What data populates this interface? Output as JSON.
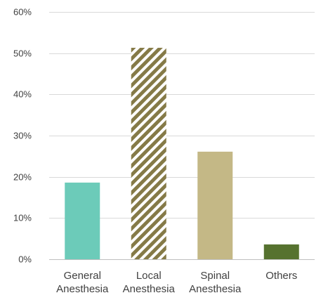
{
  "chart_data": {
    "type": "bar",
    "title": "",
    "xlabel": "",
    "ylabel": "",
    "categories": [
      [
        "General",
        "Anesthesia"
      ],
      [
        "Local",
        "Anesthesia"
      ],
      [
        "Spinal",
        "Anesthesia"
      ],
      [
        "Others"
      ]
    ],
    "values": [
      18.6,
      51.3,
      26.1,
      3.6
    ],
    "value_unit": "%",
    "ylim": [
      0,
      60
    ],
    "yticks": [
      "0%",
      "10%",
      "20%",
      "30%",
      "40%",
      "50%",
      "60%"
    ],
    "ytick_values": [
      0,
      10,
      20,
      30,
      40,
      50,
      60
    ],
    "grid": true,
    "legend": "none",
    "colors": {
      "general": "#6ccbb9",
      "local_stripe_dark": "#857a47",
      "local_stripe_light": "#ffffff",
      "spinal": "#c4b886",
      "others": "#56722f",
      "gridline": "#d9d9d9",
      "text": "#404040"
    },
    "fills": [
      "solid",
      "hatch",
      "solid",
      "solid"
    ]
  }
}
